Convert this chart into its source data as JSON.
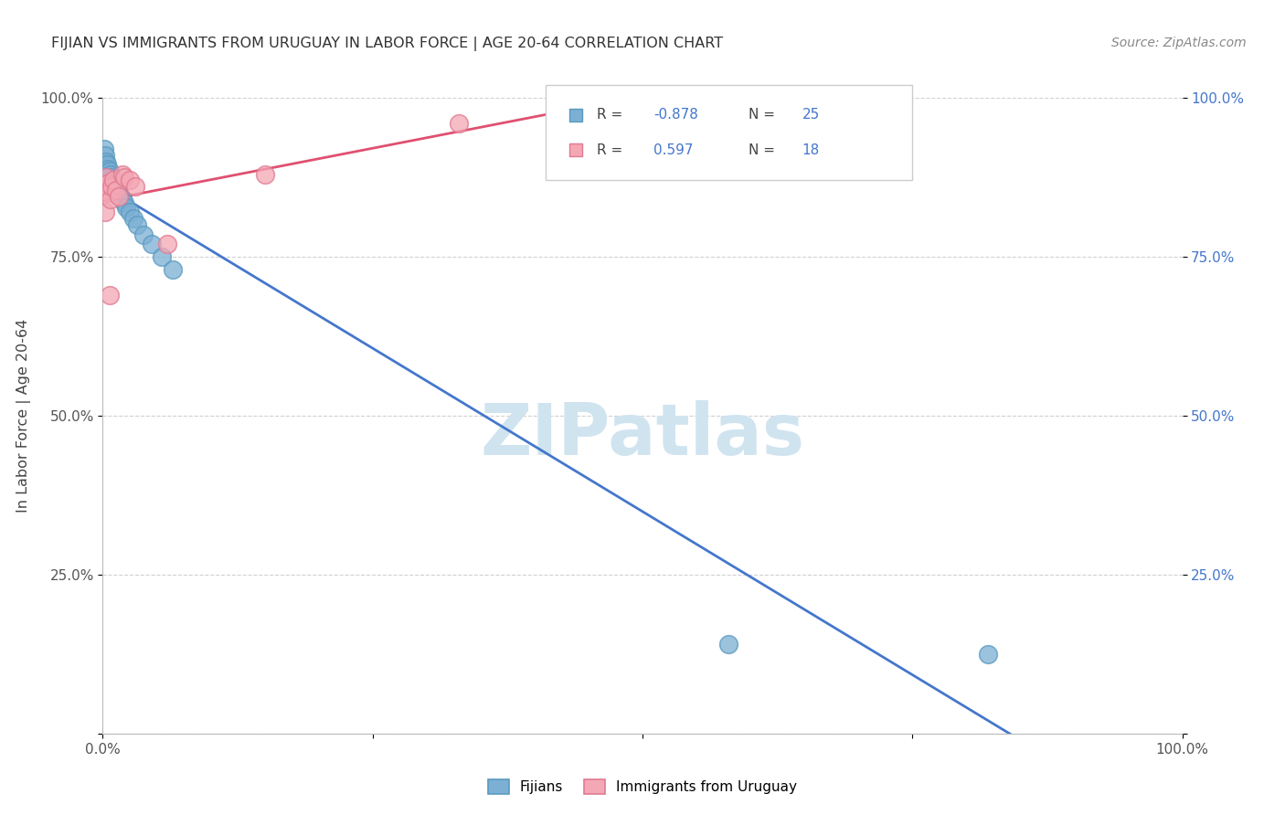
{
  "title": "FIJIAN VS IMMIGRANTS FROM URUGUAY IN LABOR FORCE | AGE 20-64 CORRELATION CHART",
  "source": "Source: ZipAtlas.com",
  "ylabel": "In Labor Force | Age 20-64",
  "xlim": [
    0,
    1.0
  ],
  "ylim": [
    0,
    1.0
  ],
  "xtick_vals": [
    0.0,
    0.25,
    0.5,
    0.75,
    1.0
  ],
  "ytick_vals": [
    0.0,
    0.25,
    0.5,
    0.75,
    1.0
  ],
  "fijian_color": "#7BAFD4",
  "fijian_edge_color": "#5A9ABF",
  "uruguay_color": "#F4A7B5",
  "uruguay_edge_color": "#E07A90",
  "trend_blue": "#4477CC",
  "trend_pink": "#E05070",
  "right_axis_color": "#4477CC",
  "watermark_color": "#D0E4F0",
  "legend_R_color": "#4477CC",
  "fijian_x": [
    0.001,
    0.002,
    0.003,
    0.004,
    0.005,
    0.006,
    0.007,
    0.008,
    0.009,
    0.01,
    0.012,
    0.014,
    0.016,
    0.018,
    0.02,
    0.022,
    0.025,
    0.028,
    0.032,
    0.038,
    0.045,
    0.055,
    0.065,
    0.58,
    0.82
  ],
  "fijian_y": [
    0.92,
    0.91,
    0.9,
    0.895,
    0.888,
    0.885,
    0.88,
    0.875,
    0.87,
    0.865,
    0.858,
    0.852,
    0.845,
    0.84,
    0.835,
    0.828,
    0.82,
    0.81,
    0.8,
    0.785,
    0.77,
    0.75,
    0.73,
    0.14,
    0.125
  ],
  "uruguay_x": [
    0.001,
    0.002,
    0.003,
    0.004,
    0.005,
    0.006,
    0.007,
    0.008,
    0.01,
    0.012,
    0.015,
    0.018,
    0.02,
    0.025,
    0.03,
    0.06,
    0.15,
    0.33
  ],
  "uruguay_y": [
    0.855,
    0.82,
    0.875,
    0.865,
    0.85,
    0.69,
    0.84,
    0.86,
    0.87,
    0.855,
    0.845,
    0.88,
    0.875,
    0.87,
    0.86,
    0.77,
    0.88,
    0.96
  ]
}
